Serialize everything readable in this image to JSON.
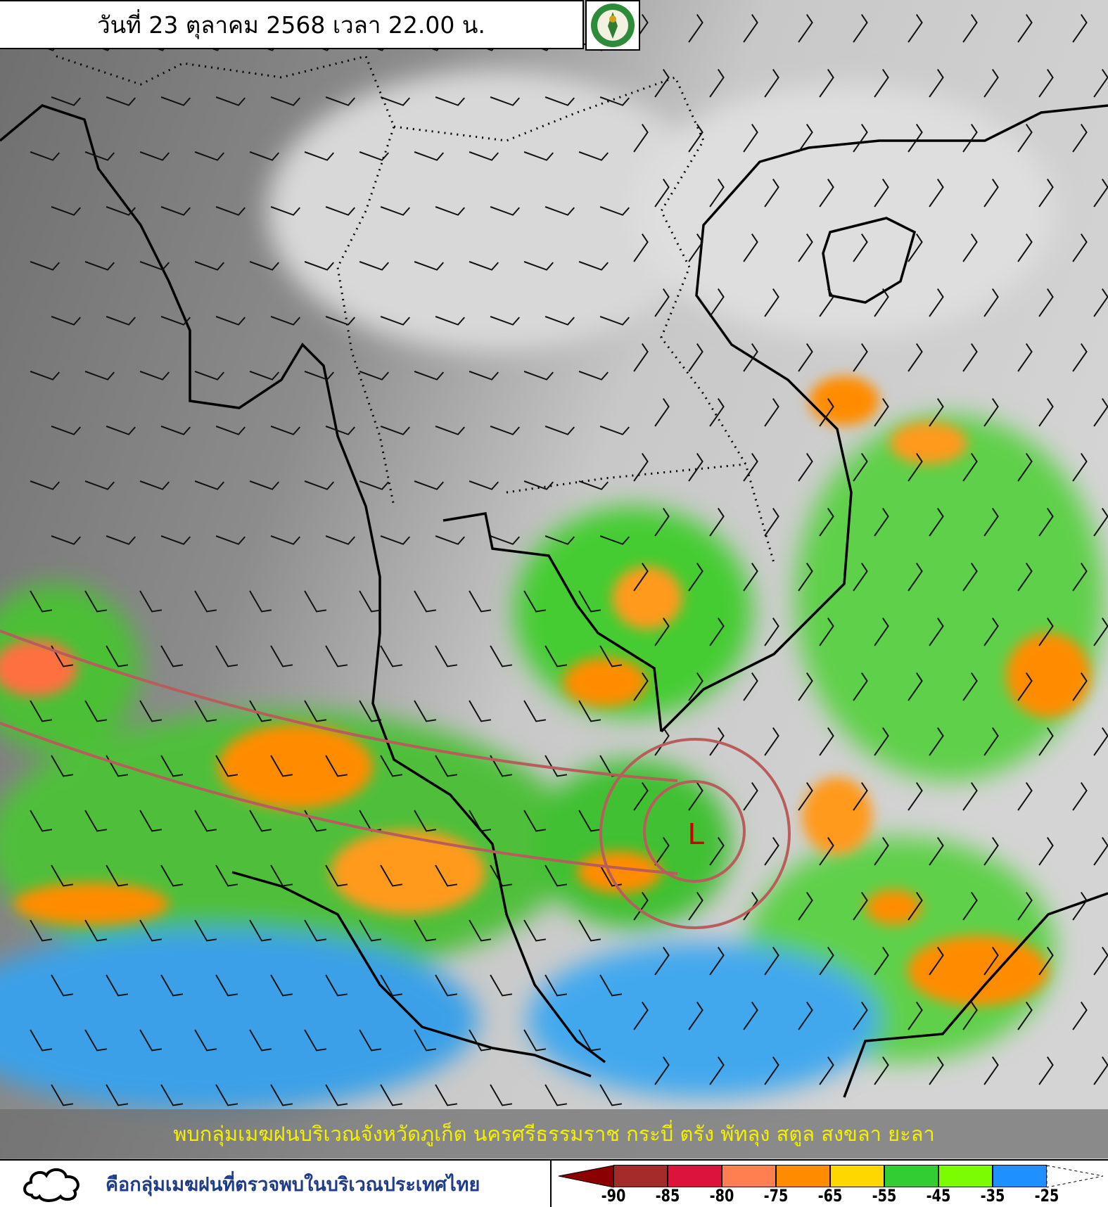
{
  "header": {
    "title": "วันที่ 23 ตุลาคม 2568 เวลา 22.00 น.",
    "logo": "tmd-logo"
  },
  "map": {
    "low_label": "L",
    "low_color": "#b85c5c"
  },
  "banner": {
    "text": "พบกลุ่มเมฆฝนบริเวณจังหวัดภูเก็ต นครศรีธรรมราช กระบี่ ตรัง พัทลุง สตูล สงขลา ยะลา"
  },
  "legend": {
    "cloud_icon": "cloud-outline-icon",
    "cloud_text": "คือกลุ่มเมฆฝนที่ตรวจพบในบริเวณประเทศไทย",
    "colorbar": {
      "colors": [
        "#8b0000",
        "#a52a2a",
        "#dc143c",
        "#ff7f50",
        "#ff8c00",
        "#ffd700",
        "#32cd32",
        "#7cfc00",
        "#1e90ff",
        "#ffffff"
      ],
      "ticks": [
        "-90",
        "-85",
        "-80",
        "-75",
        "-65",
        "-55",
        "-45",
        "-35",
        "-25"
      ]
    }
  }
}
